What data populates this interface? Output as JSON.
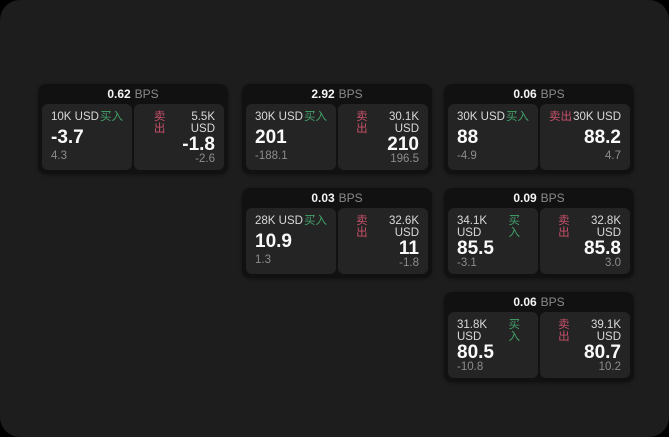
{
  "labels": {
    "bps": "BPS",
    "buy": "买入",
    "sell": "卖出"
  },
  "colors": {
    "page_background": "#1d1d1d",
    "card_background": "#111111",
    "panel_background": "#242424",
    "buy_green": "#43a26a",
    "sell_red": "#c8506a"
  },
  "cards": [
    {
      "bps": "0.62",
      "buy": {
        "amount": "10K USD",
        "value": "-3.7",
        "delta": "4.3"
      },
      "sell": {
        "amount": "5.5K USD",
        "value": "-1.8",
        "delta": "-2.6"
      }
    },
    {
      "bps": "2.92",
      "buy": {
        "amount": "30K USD",
        "value": "201",
        "delta": "-188.1"
      },
      "sell": {
        "amount": "30.1K USD",
        "value": "210",
        "delta": "196.5"
      }
    },
    {
      "bps": "0.06",
      "buy": {
        "amount": "30K USD",
        "value": "88",
        "delta": "-4.9"
      },
      "sell": {
        "amount": "30K USD",
        "value": "88.2",
        "delta": "4.7"
      }
    },
    {
      "bps": "0.03",
      "buy": {
        "amount": "28K USD",
        "value": "10.9",
        "delta": "1.3"
      },
      "sell": {
        "amount": "32.6K USD",
        "value": "11",
        "delta": "-1.8"
      }
    },
    {
      "bps": "0.09",
      "buy": {
        "amount": "34.1K USD",
        "value": "85.5",
        "delta": "-3.1"
      },
      "sell": {
        "amount": "32.8K USD",
        "value": "85.8",
        "delta": "3.0"
      }
    },
    {
      "bps": "0.06",
      "buy": {
        "amount": "31.8K USD",
        "value": "80.5",
        "delta": "-10.8"
      },
      "sell": {
        "amount": "39.1K USD",
        "value": "80.7",
        "delta": "10.2"
      }
    }
  ]
}
